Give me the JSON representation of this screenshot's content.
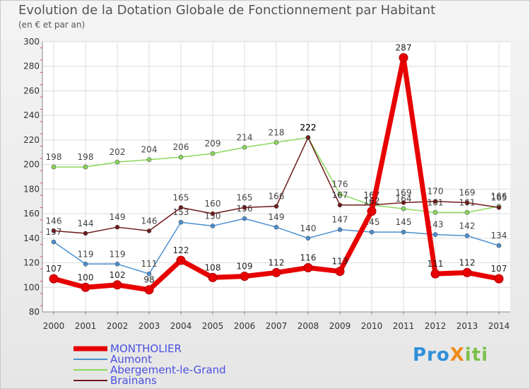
{
  "header": {
    "title": "Evolution de la Dotation Globale de Fonctionnement par Habitant",
    "subtitle": "(en € et par an)"
  },
  "logo": {
    "text": "ProXiti"
  },
  "chart_data": {
    "type": "line",
    "title": "Evolution de la Dotation Globale de Fonctionnement par Habitant",
    "subtitle": "(en € et par an)",
    "xlabel": "",
    "ylabel": "",
    "x": [
      "2000",
      "2001",
      "2002",
      "2003",
      "2004",
      "2005",
      "2006",
      "2007",
      "2008",
      "2009",
      "2010",
      "2011",
      "2012",
      "2013",
      "2014"
    ],
    "ylim": [
      80,
      300
    ],
    "yticks": [
      80,
      100,
      120,
      140,
      160,
      180,
      200,
      220,
      240,
      260,
      280,
      300
    ],
    "grid": true,
    "legend_position": "bottom-left",
    "series": [
      {
        "name": "MONTHOLIER",
        "color": "#e80000",
        "values": [
          107,
          100,
          102,
          98,
          122,
          108,
          109,
          112,
          116,
          113,
          162,
          287,
          111,
          112,
          107
        ]
      },
      {
        "name": "Aumont",
        "color": "#4a8fd0",
        "values": [
          137,
          119,
          119,
          111,
          153,
          150,
          156,
          149,
          140,
          147,
          145,
          145,
          143,
          142,
          134
        ]
      },
      {
        "name": "Abergement-le-Grand",
        "color": "#8ad85a",
        "values": [
          198,
          198,
          202,
          204,
          206,
          209,
          214,
          218,
          222,
          176,
          167,
          164,
          161,
          161,
          166
        ]
      },
      {
        "name": "Brainans",
        "color": "#6e1a1a",
        "values": [
          146,
          144,
          149,
          146,
          165,
          160,
          165,
          166,
          222,
          167,
          167,
          169,
          170,
          169,
          165
        ]
      }
    ]
  }
}
